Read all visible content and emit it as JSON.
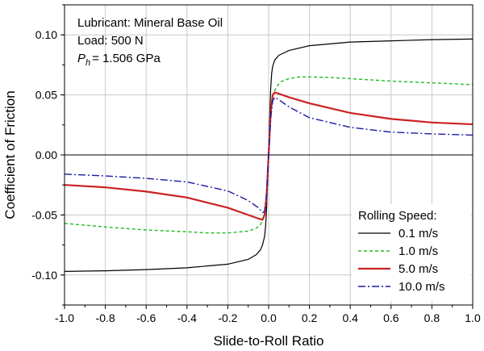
{
  "chart_data": {
    "type": "line",
    "title": "",
    "xlabel": "Slide-to-Roll Ratio",
    "ylabel": "Coefficient of Friction",
    "xlim": [
      -1.0,
      1.0
    ],
    "ylim": [
      -0.125,
      0.125
    ],
    "xticks": [
      -1.0,
      -0.8,
      -0.6,
      -0.4,
      -0.2,
      0.0,
      0.2,
      0.4,
      0.6,
      0.8,
      1.0
    ],
    "xtick_labels": [
      "-1.0",
      "-0.8",
      "-0.6",
      "-0.4",
      "-0.2",
      "0.0",
      "0.2",
      "0.4",
      "0.6",
      "0.8",
      "1.0"
    ],
    "yticks": [
      -0.1,
      -0.05,
      0.0,
      0.05,
      0.1
    ],
    "ytick_labels": [
      "-0.10",
      "-0.05",
      "0.00",
      "0.05",
      "0.10"
    ],
    "grid": true,
    "annotations": {
      "line1": "Lubricant: Mineral Base Oil",
      "line2": "Load: 500 N",
      "line3_symbol": "P",
      "line3_sub": "h",
      "line3_rest": "= 1.506 GPa"
    },
    "legend": {
      "title": "Rolling Speed:",
      "placement": "bottom-right"
    },
    "series": [
      {
        "name": "0.1 m/s",
        "color": "#000000",
        "style": "solid",
        "x": [
          -1.0,
          -0.8,
          -0.6,
          -0.4,
          -0.2,
          -0.1,
          -0.06,
          -0.04,
          -0.03,
          -0.02,
          -0.015,
          -0.01,
          -0.005,
          0.0,
          0.005,
          0.01,
          0.015,
          0.02,
          0.03,
          0.05,
          0.1,
          0.2,
          0.4,
          0.6,
          0.8,
          1.0
        ],
        "y": [
          -0.097,
          -0.0965,
          -0.0955,
          -0.094,
          -0.091,
          -0.087,
          -0.083,
          -0.079,
          -0.075,
          -0.068,
          -0.06,
          -0.045,
          -0.02,
          0.0,
          0.03,
          0.055,
          0.068,
          0.074,
          0.079,
          0.083,
          0.087,
          0.091,
          0.094,
          0.095,
          0.096,
          0.0965
        ]
      },
      {
        "name": "1.0 m/s",
        "color": "#22bb22",
        "style": "dashed",
        "x": [
          -1.0,
          -0.8,
          -0.6,
          -0.4,
          -0.3,
          -0.2,
          -0.1,
          -0.06,
          -0.04,
          -0.02,
          -0.01,
          0.0,
          0.01,
          0.02,
          0.04,
          0.06,
          0.1,
          0.15,
          0.2,
          0.3,
          0.4,
          0.6,
          0.8,
          1.0
        ],
        "y": [
          -0.057,
          -0.06,
          -0.0625,
          -0.064,
          -0.065,
          -0.065,
          -0.0635,
          -0.061,
          -0.058,
          -0.05,
          -0.03,
          0.0,
          0.035,
          0.05,
          0.057,
          0.061,
          0.0635,
          0.065,
          0.065,
          0.0645,
          0.0635,
          0.0615,
          0.06,
          0.0585
        ]
      },
      {
        "name": "5.0 m/s",
        "color": "#cc2222",
        "style": "solid",
        "x": [
          -1.0,
          -0.8,
          -0.6,
          -0.4,
          -0.2,
          -0.1,
          -0.05,
          -0.03,
          -0.02,
          -0.01,
          0.0,
          0.01,
          0.02,
          0.03,
          0.05,
          0.1,
          0.2,
          0.4,
          0.6,
          0.8,
          1.0
        ],
        "y": [
          -0.025,
          -0.027,
          -0.0305,
          -0.0355,
          -0.044,
          -0.05,
          -0.053,
          -0.054,
          -0.05,
          -0.035,
          0.0,
          0.035,
          0.05,
          0.052,
          0.051,
          0.048,
          0.043,
          0.035,
          0.03,
          0.027,
          0.0255
        ]
      },
      {
        "name": "10.0 m/s",
        "color": "#1a1aa0",
        "style": "dashdot",
        "x": [
          -1.0,
          -0.8,
          -0.6,
          -0.4,
          -0.2,
          -0.1,
          -0.05,
          -0.03,
          -0.02,
          -0.01,
          0.0,
          0.01,
          0.02,
          0.03,
          0.05,
          0.1,
          0.2,
          0.4,
          0.6,
          0.8,
          1.0
        ],
        "y": [
          -0.016,
          -0.0175,
          -0.0195,
          -0.0225,
          -0.03,
          -0.038,
          -0.044,
          -0.048,
          -0.047,
          -0.033,
          0.0,
          0.03,
          0.045,
          0.048,
          0.046,
          0.04,
          0.031,
          0.023,
          0.019,
          0.0175,
          0.0165
        ]
      }
    ]
  }
}
